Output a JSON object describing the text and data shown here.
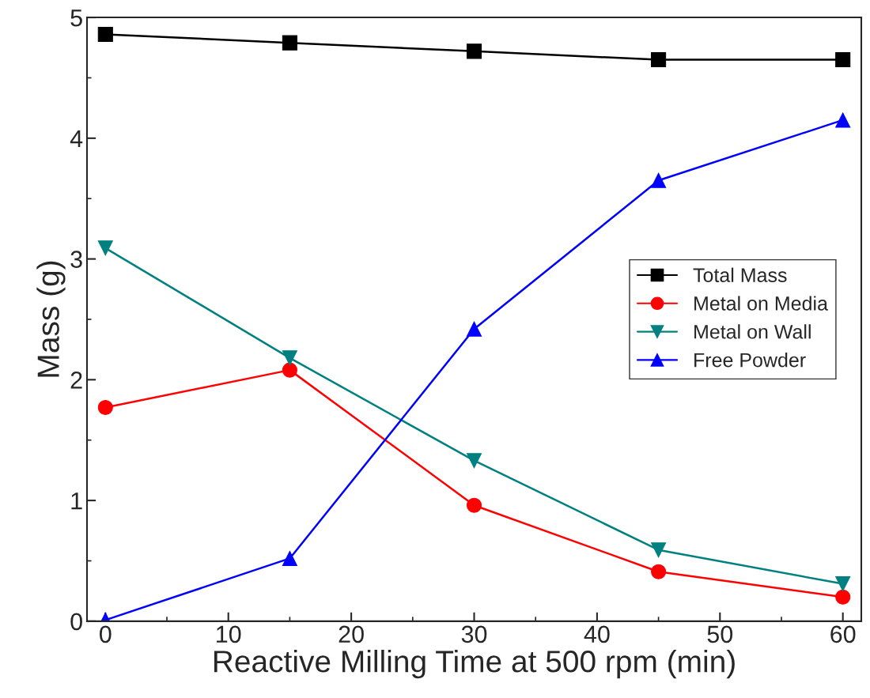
{
  "chart_data": {
    "type": "line",
    "xlabel": "Reactive Milling Time at 500 rpm (min)",
    "ylabel": "Mass (g)",
    "x": [
      0,
      15,
      30,
      45,
      60
    ],
    "series": [
      {
        "name": "Total Mass",
        "color": "#000000",
        "marker": "square",
        "values": [
          4.86,
          4.79,
          4.72,
          4.65,
          4.65
        ]
      },
      {
        "name": "Metal on Media",
        "color": "#ff0000",
        "marker": "circle",
        "values": [
          1.77,
          2.08,
          0.96,
          0.41,
          0.2
        ]
      },
      {
        "name": "Metal on Wall",
        "color": "#008080",
        "marker": "triangle_down",
        "values": [
          3.09,
          2.18,
          1.33,
          0.59,
          0.31
        ]
      },
      {
        "name": "Free Powder",
        "color": "#0000ff",
        "marker": "triangle",
        "values": [
          0.01,
          0.52,
          2.42,
          3.65,
          4.15
        ]
      }
    ],
    "xlim": [
      -1.5,
      61.5
    ],
    "ylim": [
      0,
      5
    ],
    "xticks": [
      0,
      10,
      20,
      30,
      40,
      50,
      60
    ],
    "yticks": [
      0,
      1,
      2,
      3,
      4,
      5
    ],
    "grid": false,
    "legend": "center right",
    "line_style": "solid"
  }
}
